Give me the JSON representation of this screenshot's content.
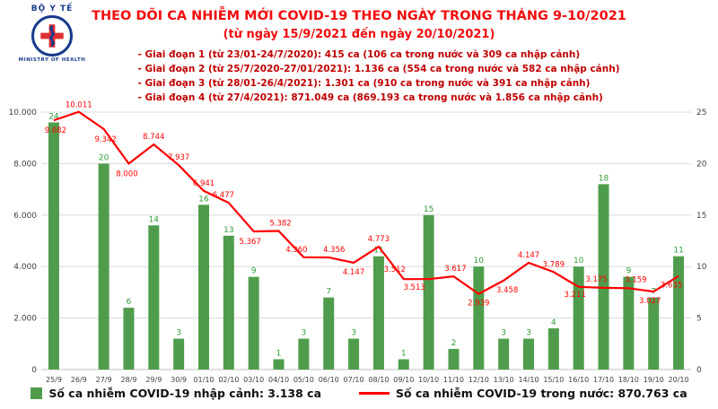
{
  "header": {
    "logo": {
      "top_text": "BỘ Y TẾ",
      "bottom_text": "MINISTRY OF HEALTH"
    },
    "title": "THEO DÕI CA NHIỄM MỚI COVID-19 THEO NGÀY TRONG THÁNG 9-10/2021",
    "subtitle": "(từ ngày 15/9/2021 đến ngày 20/10/2021)",
    "notes": [
      "- Giai đoạn 1 (từ 23/01-24/7/2020): 415 ca (106 ca trong nước và 309 ca nhập cảnh)",
      "- Giai đoạn 2 (từ 25/7/2020-27/01/2021): 1.136 ca (554 ca trong nước và 582 ca nhập cảnh)",
      "- Giai đoạn 3 (từ 28/01-26/4/2021): 1.301 ca (910 ca trong nước và 391 ca nhập cảnh)",
      "- Giai đoạn 4 (từ 27/4/2021): 871.049 ca (869.193 ca trong nước và 1.856 ca nhập cảnh)"
    ]
  },
  "chart_data": {
    "type": "bar",
    "subtype": "combo-bar-line",
    "title": "THEO DÕI CA NHIỄM MỚI COVID-19 THEO NGÀY TRONG THÁNG 9-10/2021",
    "categories": [
      "25/9",
      "26/9",
      "27/9",
      "28/9",
      "29/9",
      "30/9",
      "01/10",
      "02/10",
      "03/10",
      "04/10",
      "05/10",
      "06/10",
      "07/10",
      "08/10",
      "09/10",
      "10/10",
      "11/10",
      "12/10",
      "13/10",
      "14/10",
      "15/10",
      "16/10",
      "17/10",
      "18/10",
      "19/10",
      "20/10"
    ],
    "series": [
      {
        "name": "Số ca nhiễm COVID-19 nhập cảnh",
        "type": "bar",
        "axis": "right",
        "color": "#4f9d4c",
        "label_color": "#2e9c36",
        "values": [
          24,
          0,
          20,
          6,
          14,
          3,
          16,
          13,
          9,
          1,
          3,
          7,
          3,
          11,
          1,
          15,
          2,
          10,
          3,
          3,
          4,
          10,
          18,
          9,
          7,
          11
        ],
        "labels": [
          "24",
          "",
          "20",
          "6",
          "14",
          "3",
          "16",
          "13",
          "9",
          "1",
          "3",
          "7",
          "3",
          "11",
          "1",
          "15",
          "2",
          "10",
          "3",
          "3",
          "4",
          "10",
          "18",
          "9",
          "7",
          "11"
        ]
      },
      {
        "name": "Số ca nhiễm COVID-19 trong nước",
        "type": "line",
        "axis": "left",
        "color": "#ff0000",
        "values": [
          9682,
          10011,
          9342,
          8000,
          8744,
          7937,
          6941,
          6477,
          5367,
          5382,
          4360,
          4356,
          4147,
          4773,
          3512,
          3513,
          3617,
          2939,
          3458,
          4147,
          3789,
          3211,
          3175,
          3159,
          3027,
          3635
        ],
        "labels": [
          "9.682",
          "10.011",
          "9.342",
          "8.000",
          "8.744",
          "7.937",
          "6.941",
          "6.477",
          "5.367",
          "5.382",
          "4.360",
          "4.356",
          "4.147",
          "4.773",
          "3.512",
          "3.513",
          "3.617",
          "2.939",
          "3.458",
          "4.147",
          "3.789",
          "3.211",
          "3.175",
          "3.159",
          "3.027",
          "3.635"
        ]
      }
    ],
    "left_axis": {
      "min": 0,
      "max": 10000,
      "tick_values": [
        0,
        2000,
        4000,
        6000,
        8000,
        10000
      ],
      "tick_labels": [
        "0",
        "2.000",
        "4.000",
        "6.000",
        "8.000",
        "10.000"
      ]
    },
    "right_axis": {
      "min": 0,
      "max": 25,
      "tick_values": [
        0,
        5,
        10,
        15,
        20,
        25
      ],
      "tick_labels": [
        "0",
        "5",
        "10",
        "15",
        "20",
        "25"
      ]
    },
    "grid": true,
    "legend_position": "bottom"
  },
  "legend": {
    "items": [
      {
        "swatch": "bar",
        "color": "#4f9d4c",
        "label": "Số ca nhiễm COVID-19 nhập cảnh: 3.138 ca"
      },
      {
        "swatch": "line",
        "color": "#ff0000",
        "label": "Số ca nhiễm COVID-19 trong nước: 870.763 ca"
      }
    ]
  }
}
